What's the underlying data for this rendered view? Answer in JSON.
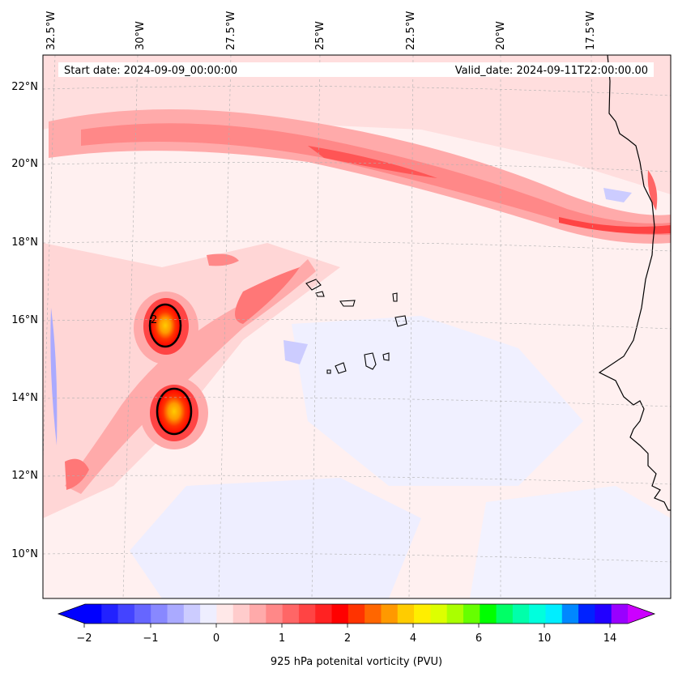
{
  "map": {
    "start_date": "Start date: 2024-09-09_00:00:00",
    "valid_date": "Valid_date: 2024-09-11T22:00:00.00",
    "longitude_labels": [
      "32.5°W",
      "30°W",
      "27.5°W",
      "25°W",
      "22.5°W",
      "20°W",
      "17.5°W"
    ],
    "latitude_labels": [
      "22°N",
      "20°N",
      "18°N",
      "16°N",
      "14°N",
      "12°N",
      "10°N"
    ],
    "contour_label": "2"
  },
  "colorbar": {
    "label": "925 hPa potenital vorticity (PVU)",
    "tick_labels": [
      "−2",
      "−1",
      "0",
      "1",
      "2",
      "4",
      "6",
      "10",
      "14"
    ],
    "colors": [
      "#0000ff",
      "#2222ff",
      "#4444ff",
      "#6666ff",
      "#8888ff",
      "#aaaaff",
      "#ccccff",
      "#eeeeff",
      "#ffe8e8",
      "#ffcccc",
      "#ffaaaa",
      "#ff8888",
      "#ff6666",
      "#ff4444",
      "#ff2222",
      "#ff0000",
      "#ff3300",
      "#ff6600",
      "#ff9900",
      "#ffcc00",
      "#ffee00",
      "#ddff00",
      "#aaff00",
      "#66ff00",
      "#00ff00",
      "#00ff66",
      "#00ffaa",
      "#00ffdd",
      "#00eeff",
      "#0088ff",
      "#0022ff",
      "#2200ff",
      "#9900ff"
    ],
    "under_color": "#0000ff",
    "over_color": "#cc00ff"
  }
}
